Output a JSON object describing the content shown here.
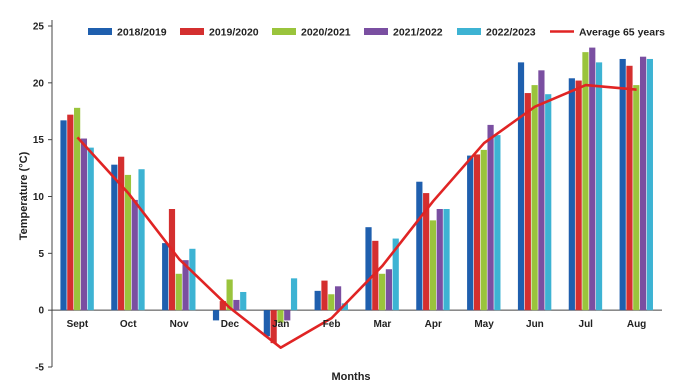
{
  "chart_data": {
    "type": "bar",
    "xlabel": "Months",
    "ylabel": "Temperature (°C)",
    "ylim": [
      -5,
      25
    ],
    "yticks": [
      -5,
      0,
      5,
      10,
      15,
      20,
      25
    ],
    "grid": false,
    "legend_position": "top",
    "categories": [
      "Sept",
      "Oct",
      "Nov",
      "Dec",
      "Jan",
      "Feb",
      "Mar",
      "Apr",
      "May",
      "Jun",
      "Jul",
      "Aug"
    ],
    "series": [
      {
        "name": "2018/2019",
        "color": "#1f5fae",
        "values": [
          16.7,
          12.8,
          5.9,
          -0.9,
          -2.3,
          1.7,
          7.3,
          11.3,
          13.6,
          21.8,
          20.4,
          22.1
        ]
      },
      {
        "name": "2019/2020",
        "color": "#d42f2f",
        "values": [
          17.2,
          13.5,
          8.9,
          0.8,
          -2.9,
          2.6,
          6.1,
          10.3,
          13.7,
          19.1,
          20.2,
          21.5
        ]
      },
      {
        "name": "2020/2021",
        "color": "#9ac43c",
        "values": [
          17.8,
          11.9,
          3.2,
          2.7,
          -1.1,
          1.4,
          3.2,
          7.9,
          14.1,
          19.8,
          22.7,
          19.8
        ]
      },
      {
        "name": "2021/2022",
        "color": "#7a4fa1",
        "values": [
          15.1,
          9.7,
          4.4,
          0.9,
          -0.9,
          2.1,
          3.6,
          8.9,
          16.3,
          21.1,
          23.1,
          22.3
        ]
      },
      {
        "name": "2022/2023",
        "color": "#3db3d3",
        "values": [
          14.3,
          12.4,
          5.4,
          1.6,
          2.8,
          0.6,
          6.3,
          8.9,
          15.4,
          19.0,
          21.8,
          22.1
        ]
      }
    ],
    "line_series": {
      "name": "Average 65 years",
      "color": "#e02424",
      "values": [
        15.2,
        10.3,
        4.5,
        0.2,
        -3.3,
        -0.7,
        3.9,
        9.6,
        14.7,
        17.9,
        19.8,
        19.4
      ]
    }
  }
}
